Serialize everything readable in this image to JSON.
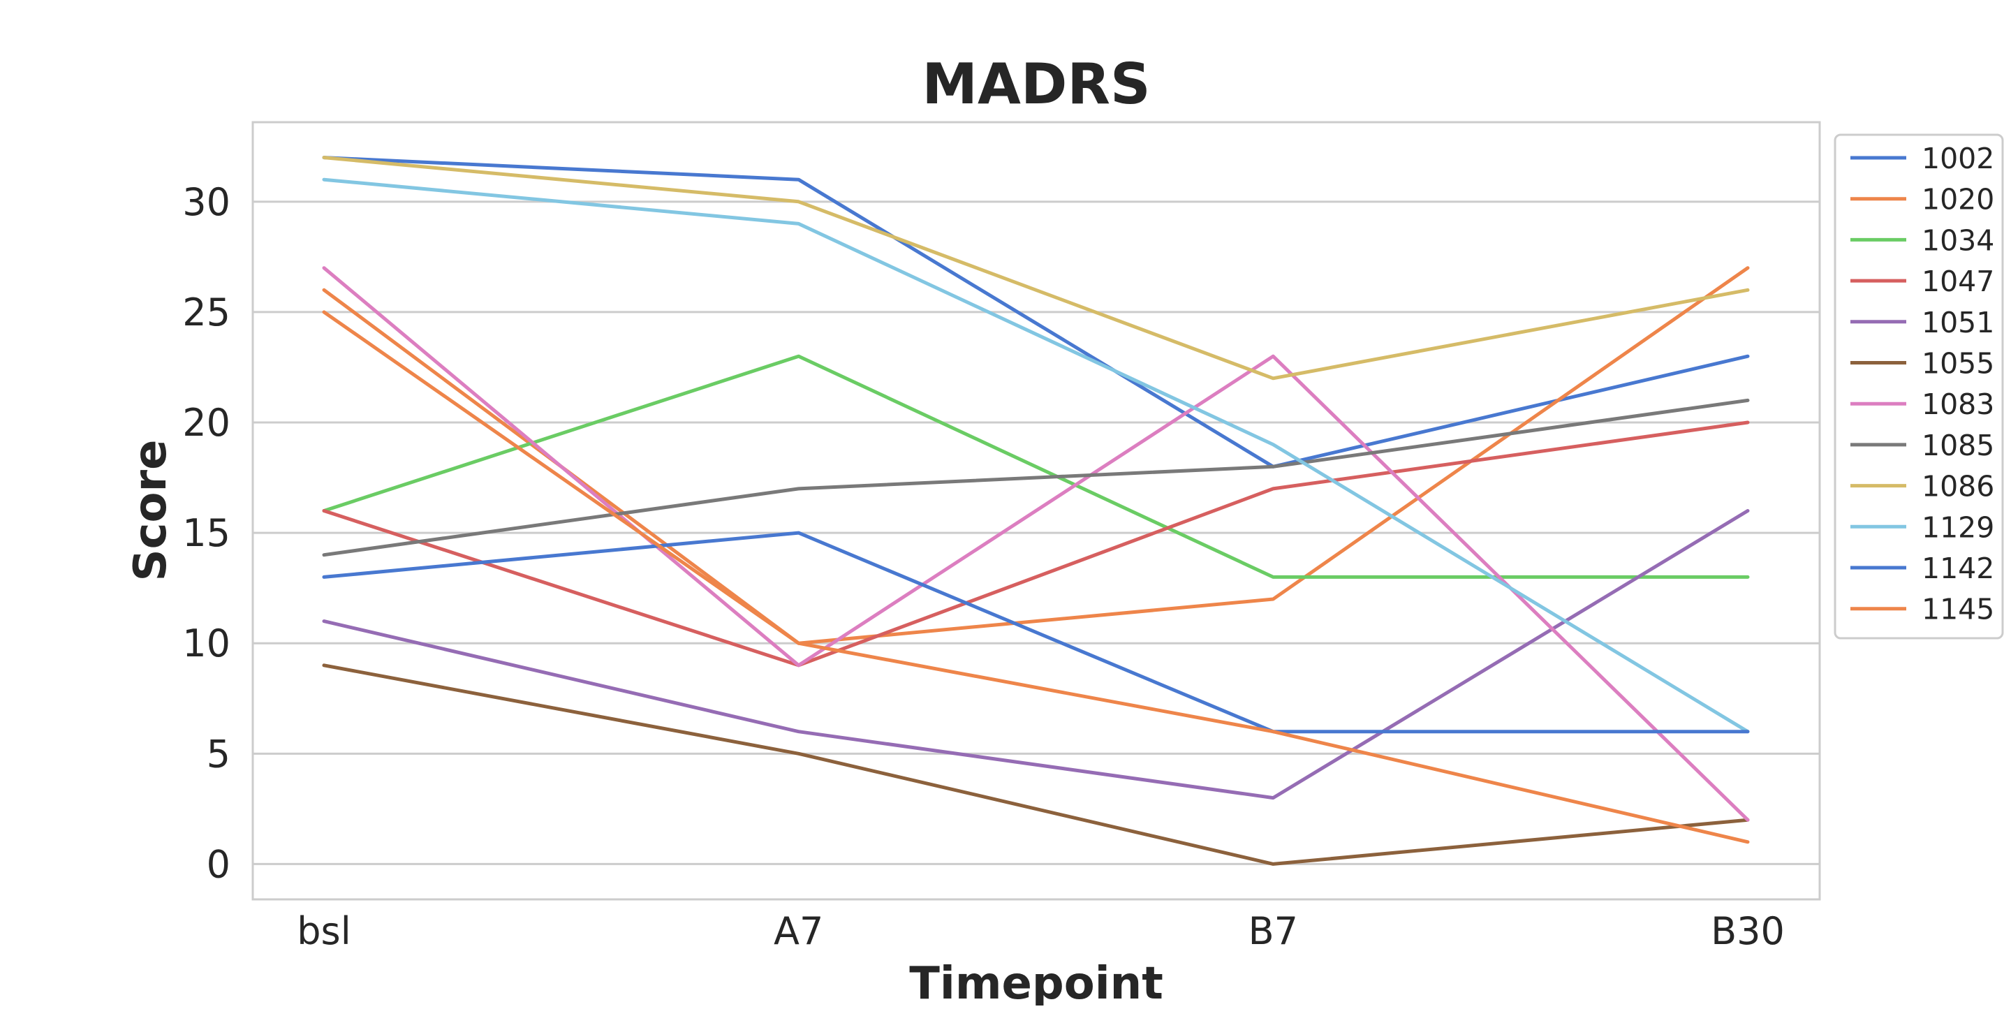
{
  "chart_data": {
    "type": "line",
    "title": "MADRS",
    "xlabel": "Timepoint",
    "ylabel": "Score",
    "categories": [
      "bsl",
      "A7",
      "B7",
      "B30"
    ],
    "y_ticks": [
      0,
      5,
      10,
      15,
      20,
      25,
      30
    ],
    "ylim": [
      -1.6,
      33.6
    ],
    "grid": "horizontal",
    "legend_position": "outside-right",
    "series": [
      {
        "name": "1002",
        "color": "#4878d0",
        "values": [
          32,
          31,
          18,
          23
        ]
      },
      {
        "name": "1020",
        "color": "#ee854a",
        "values": [
          26,
          10,
          12,
          27
        ]
      },
      {
        "name": "1034",
        "color": "#6acc64",
        "values": [
          16,
          23,
          13,
          13
        ]
      },
      {
        "name": "1047",
        "color": "#d65f5f",
        "values": [
          16,
          9,
          17,
          20
        ]
      },
      {
        "name": "1051",
        "color": "#956cb4",
        "values": [
          11,
          6,
          3,
          16
        ]
      },
      {
        "name": "1055",
        "color": "#8c613c",
        "values": [
          9,
          5,
          0,
          2
        ]
      },
      {
        "name": "1083",
        "color": "#dc7ec0",
        "values": [
          27,
          9,
          23,
          2
        ]
      },
      {
        "name": "1085",
        "color": "#797979",
        "values": [
          14,
          17,
          18,
          21
        ]
      },
      {
        "name": "1086",
        "color": "#d5bb67",
        "values": [
          32,
          30,
          22,
          26
        ]
      },
      {
        "name": "1129",
        "color": "#82c6e2",
        "values": [
          31,
          29,
          19,
          6
        ]
      },
      {
        "name": "1142",
        "color": "#4878d0",
        "values": [
          13,
          15,
          6,
          6
        ]
      },
      {
        "name": "1145",
        "color": "#ee854a",
        "values": [
          25,
          10,
          6,
          1
        ]
      }
    ]
  }
}
